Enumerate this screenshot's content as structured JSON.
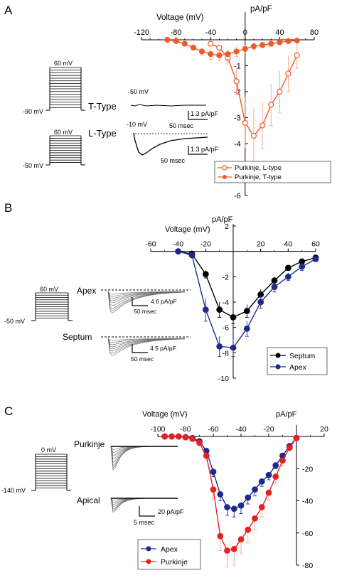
{
  "panels": [
    {
      "letter": "A",
      "protocol_top": {
        "top": "60 mV",
        "bottom": "-90 mV"
      },
      "protocol_bottom": {
        "top": "60 mV",
        "bottom": "-50 mV"
      },
      "trace_top": {
        "label": "T-Type",
        "voltage": "-50 mV",
        "scale_y": "1.3 pA/pF",
        "scale_x": "50 msec"
      },
      "trace_bottom": {
        "label": "L-Type",
        "voltage": "-10 mV",
        "scale_y": "1.3 pA/pF",
        "scale_x": "50 msec"
      }
    },
    {
      "letter": "B",
      "protocol": {
        "top": "60 mV",
        "bottom": "-50 mV"
      },
      "trace_top": {
        "label": "Apex",
        "scale_y": "4.6 pA/pF",
        "scale_x": "50 msec"
      },
      "trace_bottom": {
        "label": "Septum",
        "scale_y": "4.5 pA/pF",
        "scale_x": "50 msec"
      }
    },
    {
      "letter": "C",
      "protocol": {
        "top": "0 mV",
        "bottom": "-140 mV"
      },
      "trace_top": {
        "label": "Purkinje"
      },
      "trace_bottom": {
        "label": "Apical",
        "scale_y": "20 pA/pF",
        "scale_x": "5 msec"
      }
    }
  ],
  "colors": {
    "orange": "#f05a28",
    "orange_err": "#f5a48a",
    "navy": "#1e2a8c",
    "red": "#e82020",
    "black": "#000000",
    "grey": "#555555"
  },
  "chart_data": [
    {
      "type": "line",
      "panel": "A",
      "xlabel": "Voltage (mV)",
      "ylabel": "pA/pF",
      "xlim": [
        -120,
        80
      ],
      "ylim": [
        -6,
        0
      ],
      "x_ticks": [
        -120,
        -80,
        -40,
        0,
        40,
        80
      ],
      "y_ticks": [
        -1,
        -2,
        -3,
        -4,
        -5,
        -6
      ],
      "x_axis_position": "top",
      "legend": "bottom-right",
      "series": [
        {
          "name": "Purkinje, L-type",
          "marker": "open",
          "color": "#f05a28",
          "x": [
            -40,
            -30,
            -20,
            -10,
            0,
            10,
            20,
            30,
            40,
            50,
            60
          ],
          "y": [
            -0.15,
            -0.3,
            -0.7,
            -1.6,
            -3.2,
            -3.7,
            -3.3,
            -2.5,
            -2.0,
            -1.3,
            -0.6
          ],
          "err": [
            0.05,
            0.1,
            0.2,
            0.5,
            1.0,
            1.1,
            0.9,
            0.8,
            0.8,
            0.7,
            0.5
          ]
        },
        {
          "name": "Purkinje, T-type",
          "marker": "filled",
          "color": "#f05a28",
          "x": [
            -90,
            -80,
            -70,
            -60,
            -50,
            -40,
            -30,
            -20,
            -10,
            0,
            10,
            20,
            30,
            40,
            50,
            60
          ],
          "y": [
            0.0,
            -0.05,
            -0.15,
            -0.3,
            -0.45,
            -0.55,
            -0.6,
            -0.55,
            -0.45,
            -0.35,
            -0.25,
            -0.2,
            -0.15,
            -0.1,
            -0.05,
            -0.03
          ],
          "err": [
            0.02,
            0.03,
            0.05,
            0.1,
            0.15,
            0.2,
            0.2,
            0.2,
            0.2,
            0.15,
            0.12,
            0.1,
            0.1,
            0.08,
            0.05,
            0.03
          ]
        }
      ]
    },
    {
      "type": "line",
      "panel": "B",
      "xlabel": "Voltage (mV)",
      "ylabel": "pA/pF",
      "xlim": [
        -60,
        60
      ],
      "ylim": [
        -10,
        2
      ],
      "x_ticks": [
        -60,
        -40,
        -20,
        20,
        40,
        60
      ],
      "y_ticks": [
        2,
        -2,
        -4,
        -6,
        -8,
        -10
      ],
      "x_axis_position": "top",
      "legend": "bottom-right",
      "series": [
        {
          "name": "Septum",
          "marker": "filled",
          "color": "#000000",
          "x": [
            -40,
            -30,
            -20,
            -10,
            0,
            10,
            20,
            30,
            40,
            50,
            60
          ],
          "y": [
            0,
            -0.2,
            -1.8,
            -4.6,
            -5.2,
            -4.7,
            -3.4,
            -2.3,
            -1.3,
            -0.8,
            -0.5
          ],
          "err": [
            0.1,
            0.2,
            0.3,
            0.6,
            0.5,
            0.5,
            0.4,
            0.3,
            0.2,
            0.2,
            0.1
          ]
        },
        {
          "name": "Apex",
          "marker": "filled",
          "color": "#1e2a8c",
          "x": [
            -40,
            -30,
            -20,
            -10,
            0,
            10,
            20,
            30,
            40,
            50,
            60
          ],
          "y": [
            0,
            -0.3,
            -4.6,
            -7.5,
            -7.6,
            -6.1,
            -4.0,
            -2.8,
            -2.0,
            -1.2,
            -0.6
          ],
          "err": [
            0.1,
            0.2,
            0.9,
            0.8,
            0.7,
            0.6,
            0.5,
            0.4,
            0.3,
            0.3,
            0.2
          ]
        }
      ]
    },
    {
      "type": "line",
      "panel": "C",
      "xlabel": "Voltage      (mV)",
      "ylabel": "pA/pF",
      "xlim": [
        -100,
        20
      ],
      "ylim": [
        -80,
        0
      ],
      "x_ticks": [
        -100,
        -80,
        -60,
        -40,
        -20,
        20
      ],
      "y_ticks": [
        -20,
        -40,
        -60,
        -80
      ],
      "x_axis_position": "top",
      "legend": "bottom-left",
      "series": [
        {
          "name": "Apex",
          "marker": "filled",
          "color": "#1e2a8c",
          "x": [
            -95,
            -90,
            -85,
            -80,
            -75,
            -70,
            -65,
            -60,
            -55,
            -50,
            -45,
            -40,
            -35,
            -30,
            -25,
            -20,
            -15,
            -10,
            -5,
            0
          ],
          "y": [
            0,
            0,
            0,
            -0.5,
            -1,
            -3,
            -9,
            -22,
            -36,
            -44,
            -45,
            -43,
            -38,
            -33,
            -28,
            -24,
            -18,
            -12,
            -6,
            -1
          ],
          "err": [
            0,
            0,
            0,
            0.2,
            0.4,
            1,
            2,
            3,
            4,
            5,
            5,
            5,
            4,
            4,
            3,
            3,
            2,
            2,
            1,
            0.5
          ]
        },
        {
          "name": "Purkinje",
          "marker": "filled",
          "color": "#e82020",
          "x": [
            -95,
            -90,
            -85,
            -80,
            -75,
            -70,
            -65,
            -60,
            -55,
            -50,
            -45,
            -40,
            -35,
            -30,
            -25,
            -20,
            -15,
            -10,
            -5,
            0
          ],
          "y": [
            0,
            0,
            0,
            -0.5,
            -1.5,
            -4,
            -12,
            -33,
            -62,
            -71,
            -70,
            -64,
            -58,
            -51,
            -44,
            -35,
            -25,
            -15,
            -7,
            -1
          ],
          "err": [
            0,
            0,
            0,
            0.3,
            0.5,
            1,
            3,
            6,
            9,
            10,
            10,
            9,
            8,
            7,
            6,
            5,
            4,
            3,
            2,
            1
          ]
        }
      ]
    }
  ]
}
